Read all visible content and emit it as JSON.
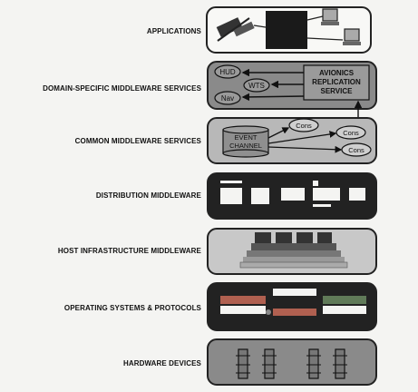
{
  "layers": [
    {
      "id": "applications",
      "label": "APPLICATIONS"
    },
    {
      "id": "domain-specific",
      "label": "DOMAIN-SPECIFIC MIDDLEWARE SERVICES"
    },
    {
      "id": "common",
      "label": "COMMON MIDDLEWARE SERVICES"
    },
    {
      "id": "distribution",
      "label": "DISTRIBUTION MIDDLEWARE"
    },
    {
      "id": "host-infrastructure",
      "label": "HOST INFRASTRUCTURE MIDDLEWARE"
    },
    {
      "id": "os-protocols",
      "label": "OPERATING SYSTEMS & PROTOCOLS"
    },
    {
      "id": "hardware",
      "label": "HARDWARE DEVICES"
    }
  ],
  "domain_box": {
    "hud": "HUD",
    "wts": "WTS",
    "nav": "Nav",
    "avionics_line1": "AVIONICS",
    "avionics_line2": "REPLICATION",
    "avionics_line3": "SERVICE"
  },
  "common_box": {
    "event_line1": "EVENT",
    "event_line2": "CHANNEL",
    "cons": "Cons"
  },
  "colors": {
    "dark": "#222222",
    "mid_gray": "#8a8a8a",
    "light_gray": "#c8c8c8",
    "os_red": "#b06050",
    "os_green": "#607a58"
  }
}
